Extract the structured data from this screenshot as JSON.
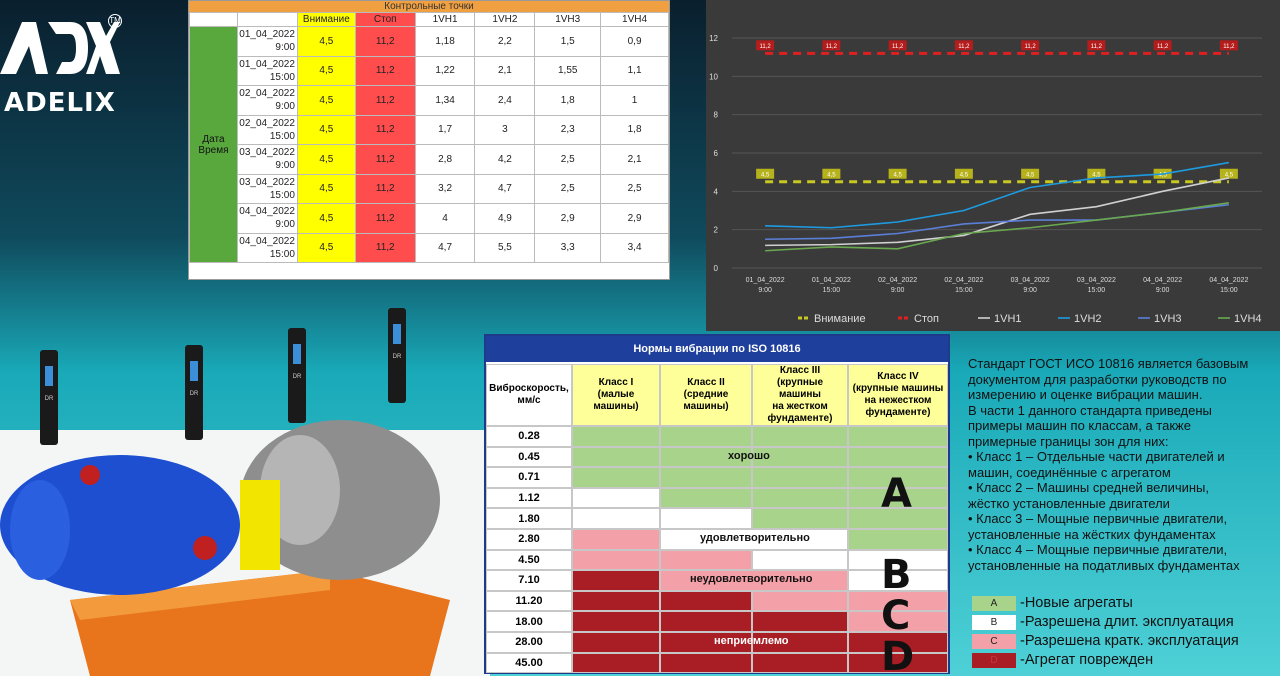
{
  "brand": {
    "name": "ADELIX",
    "tm": "TM"
  },
  "control_points": {
    "title": "Контрольные точки",
    "headers": [
      "",
      "",
      "Внимание",
      "Стоп",
      "1VH1",
      "1VH2",
      "1VH3",
      "1VH4"
    ],
    "side_label": [
      "Дата",
      "Время"
    ],
    "rows": [
      {
        "date": "01_04_2022",
        "time": "9:00",
        "warn": "4,5",
        "stop": "11,2",
        "v1": "1,18",
        "v2": "2,2",
        "v3": "1,5",
        "v4": "0,9"
      },
      {
        "date": "01_04_2022",
        "time": "15:00",
        "warn": "4,5",
        "stop": "11,2",
        "v1": "1,22",
        "v2": "2,1",
        "v3": "1,55",
        "v4": "1,1"
      },
      {
        "date": "02_04_2022",
        "time": "9:00",
        "warn": "4,5",
        "stop": "11,2",
        "v1": "1,34",
        "v2": "2,4",
        "v3": "1,8",
        "v4": "1"
      },
      {
        "date": "02_04_2022",
        "time": "15:00",
        "warn": "4,5",
        "stop": "11,2",
        "v1": "1,7",
        "v2": "3",
        "v3": "2,3",
        "v4": "1,8"
      },
      {
        "date": "03_04_2022",
        "time": "9:00",
        "warn": "4,5",
        "stop": "11,2",
        "v1": "2,8",
        "v2": "4,2",
        "v3": "2,5",
        "v4": "2,1"
      },
      {
        "date": "03_04_2022",
        "time": "15:00",
        "warn": "4,5",
        "stop": "11,2",
        "v1": "3,2",
        "v2": "4,7",
        "v3": "2,5",
        "v4": "2,5"
      },
      {
        "date": "04_04_2022",
        "time": "9:00",
        "warn": "4,5",
        "stop": "11,2",
        "v1": "4",
        "v2": "4,9",
        "v3": "2,9",
        "v4": "2,9"
      },
      {
        "date": "04_04_2022",
        "time": "15:00",
        "warn": "4,5",
        "stop": "11,2",
        "v1": "4,7",
        "v2": "5,5",
        "v3": "3,3",
        "v4": "3,4"
      }
    ]
  },
  "chart_data": {
    "type": "line",
    "categories": [
      "01_04_2022 9:00",
      "01_04_2022 15:00",
      "02_04_2022 9:00",
      "02_04_2022 15:00",
      "03_04_2022 9:00",
      "03_04_2022 15:00",
      "04_04_2022 9:00",
      "04_04_2022 15:00"
    ],
    "category_lines": [
      [
        "01_04_2022",
        "9:00"
      ],
      [
        "01_04_2022",
        "15:00"
      ],
      [
        "02_04_2022",
        "9:00"
      ],
      [
        "02_04_2022",
        "15:00"
      ],
      [
        "03_04_2022",
        "9:00"
      ],
      [
        "03_04_2022",
        "15:00"
      ],
      [
        "04_04_2022",
        "9:00"
      ],
      [
        "04_04_2022",
        "15:00"
      ]
    ],
    "ylim": [
      0,
      12
    ],
    "yticks": [
      0,
      2,
      4,
      6,
      8,
      10,
      12
    ],
    "grid": true,
    "legend_position": "bottom",
    "series": [
      {
        "name": "Внимание",
        "values": [
          4.5,
          4.5,
          4.5,
          4.5,
          4.5,
          4.5,
          4.5,
          4.5
        ],
        "color": "#c8c820",
        "dashed": true,
        "labels": [
          "4,5",
          "4,5",
          "4,5",
          "4,5",
          "4,5",
          "4,5",
          "4,5",
          "4,5"
        ]
      },
      {
        "name": "Стоп",
        "values": [
          11.2,
          11.2,
          11.2,
          11.2,
          11.2,
          11.2,
          11.2,
          11.2
        ],
        "color": "#e02020",
        "dashed": true,
        "labels": [
          "11,2",
          "11,2",
          "11,2",
          "11,2",
          "11,2",
          "11,2",
          "11,2",
          "11,2"
        ]
      },
      {
        "name": "1VH1",
        "values": [
          1.18,
          1.22,
          1.34,
          1.7,
          2.8,
          3.2,
          4.0,
          4.7
        ],
        "color": "#d0d0d0"
      },
      {
        "name": "1VH2",
        "values": [
          2.2,
          2.1,
          2.4,
          3.0,
          4.2,
          4.7,
          4.9,
          5.5
        ],
        "color": "#1e9be0"
      },
      {
        "name": "1VH3",
        "values": [
          1.5,
          1.55,
          1.8,
          2.3,
          2.5,
          2.5,
          2.9,
          3.3
        ],
        "color": "#5b7fd8"
      },
      {
        "name": "1VH4",
        "values": [
          0.9,
          1.1,
          1.0,
          1.8,
          2.1,
          2.5,
          2.9,
          3.4
        ],
        "color": "#6aa84f"
      }
    ]
  },
  "iso": {
    "title": "Нормы вибрации по ISO 10816",
    "speed_header": [
      "Виброскорость,",
      "мм/с"
    ],
    "class_headers": [
      [
        "Класс I",
        "(малые",
        "машины)"
      ],
      [
        "Класс II",
        "(средние",
        "машины)"
      ],
      [
        "Класс III",
        "(крупные машины",
        "на жестком",
        "фундаменте)"
      ],
      [
        "Класс IV",
        "(крупные машины",
        "на нежестком",
        "фундаменте)"
      ]
    ],
    "speeds": [
      "0.28",
      "0.45",
      "0.71",
      "1.12",
      "1.80",
      "2.80",
      "4.50",
      "7.10",
      "11.20",
      "18.00",
      "28.00",
      "45.00"
    ],
    "grid": [
      [
        "A",
        "A",
        "A",
        "A"
      ],
      [
        "A",
        "A",
        "A",
        "A"
      ],
      [
        "A",
        "A",
        "A",
        "A"
      ],
      [
        "B",
        "A",
        "A",
        "A"
      ],
      [
        "B",
        "B",
        "A",
        "A"
      ],
      [
        "C",
        "B",
        "B",
        "A"
      ],
      [
        "C",
        "C",
        "B",
        "B"
      ],
      [
        "D",
        "C",
        "C",
        "B"
      ],
      [
        "D",
        "D",
        "C",
        "C"
      ],
      [
        "D",
        "D",
        "D",
        "C"
      ],
      [
        "D",
        "D",
        "D",
        "D"
      ],
      [
        "D",
        "D",
        "D",
        "D"
      ]
    ],
    "zone_labels": {
      "good": "хорошо",
      "ok": "удовлетворительно",
      "bad": "неудовлетворительно",
      "critical": "неприемлемо"
    },
    "letters": [
      "A",
      "B",
      "C",
      "D"
    ]
  },
  "colors": {
    "A": "#a7d48a",
    "B": "#ffffff",
    "C": "#f4a0a8",
    "D": "#a81e24"
  },
  "description": [
    "Стандарт ГОСТ ИСО 10816 является базовым",
    "документом для разработки руководств по",
    "измерению и оценке вибрации машин.",
    "В части 1 данного стандарта приведены",
    "примеры машин по классам, а также",
    "примерные границы зон для них:",
    "• Класс 1 – Отдельные части двигателей и",
    "машин, соединённые с агрегатом",
    "• Класс 2 – Машины средней величины,",
    "жёстко установленные двигатели",
    "• Класс 3 – Мощные первичные двигатели,",
    "установленные на жёстких фундаментах",
    "• Класс 4 – Мощные первичные двигатели,",
    "установленные на податливых фундаментах"
  ],
  "legend": [
    {
      "code": "A",
      "text": "-Новые агрегаты"
    },
    {
      "code": "B",
      "text": "-Разрешена длит. эксплуатация"
    },
    {
      "code": "C",
      "text": "-Разрешена кратк. эксплуатация"
    },
    {
      "code": "D",
      "text": "-Агрегат поврежден"
    }
  ],
  "sensor_label": "DR"
}
